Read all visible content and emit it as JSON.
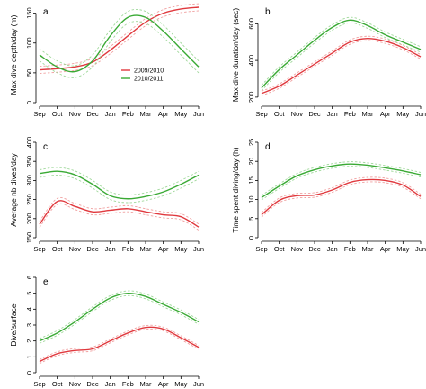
{
  "colors": {
    "season_2009": "#e0393e",
    "season_2010": "#3aaa35",
    "ci_2009": "#f0a0a0",
    "ci_2010": "#9fd89a"
  },
  "legend": {
    "season_2009": "2009/2010",
    "season_2010": "2010/2011"
  },
  "chart_data": [
    {
      "panel": "a",
      "type": "line",
      "ylabel": "Max dive depth/day (m)",
      "categories": [
        "Sep",
        "Oct",
        "Nov",
        "Dec",
        "Jan",
        "Feb",
        "Mar",
        "Apr",
        "May",
        "Jun"
      ],
      "x": [
        0,
        1,
        2,
        3,
        4,
        5,
        6,
        7,
        8,
        9
      ],
      "ylim": [
        0,
        160
      ],
      "yticks": [
        0,
        50,
        100,
        150
      ],
      "series": [
        {
          "name": "2009/2010",
          "values": [
            55,
            57,
            60,
            68,
            88,
            112,
            135,
            150,
            157,
            160
          ],
          "ci": 6
        },
        {
          "name": "2010/2011",
          "values": [
            80,
            60,
            52,
            70,
            112,
            143,
            143,
            120,
            90,
            60
          ],
          "ci": 10
        }
      ]
    },
    {
      "panel": "b",
      "type": "line",
      "ylabel": "Max dive duration/day (sec)",
      "categories": [
        "Sep",
        "Oct",
        "Nov",
        "Dec",
        "Jan",
        "Feb",
        "Mar",
        "Apr",
        "May",
        "Jun"
      ],
      "x": [
        0,
        1,
        2,
        3,
        4,
        5,
        6,
        7,
        8,
        9
      ],
      "ylim": [
        170,
        690
      ],
      "yticks": [
        200,
        400,
        600
      ],
      "series": [
        {
          "name": "2009/2010",
          "values": [
            220,
            260,
            320,
            380,
            440,
            500,
            520,
            505,
            470,
            420
          ],
          "ci": 12
        },
        {
          "name": "2010/2011",
          "values": [
            250,
            350,
            430,
            510,
            580,
            620,
            590,
            540,
            500,
            460
          ],
          "ci": 15
        }
      ]
    },
    {
      "panel": "c",
      "type": "line",
      "ylabel": "Average nb dives/day",
      "categories": [
        "Sep",
        "Oct",
        "Nov",
        "Dec",
        "Jan",
        "Feb",
        "Mar",
        "Apr",
        "May",
        "Jun"
      ],
      "x": [
        0,
        1,
        2,
        3,
        4,
        5,
        6,
        7,
        8,
        9
      ],
      "ylim": [
        150,
        400
      ],
      "yticks": [
        150,
        200,
        250,
        300,
        350,
        400
      ],
      "series": [
        {
          "name": "2009/2010",
          "values": [
            185,
            245,
            232,
            218,
            222,
            226,
            218,
            210,
            205,
            178
          ],
          "ci": 8
        },
        {
          "name": "2010/2011",
          "values": [
            318,
            324,
            315,
            290,
            260,
            252,
            258,
            270,
            290,
            314
          ],
          "ci": 10
        }
      ]
    },
    {
      "panel": "d",
      "type": "line",
      "ylabel": "Time spent diving/day (h)",
      "categories": [
        "Sep",
        "Oct",
        "Nov",
        "Dec",
        "Jan",
        "Feb",
        "Mar",
        "Apr",
        "May",
        "Jun"
      ],
      "x": [
        0,
        1,
        2,
        3,
        4,
        5,
        6,
        7,
        8,
        9
      ],
      "ylim": [
        0,
        25
      ],
      "yticks": [
        0,
        5,
        10,
        15,
        20,
        25
      ],
      "series": [
        {
          "name": "2009/2010",
          "values": [
            6,
            9.8,
            11,
            11.2,
            12.5,
            14.5,
            15.2,
            15,
            13.8,
            10.8
          ],
          "ci": 0.6
        },
        {
          "name": "2010/2011",
          "values": [
            10.5,
            13.5,
            16.2,
            17.8,
            18.8,
            19.3,
            19,
            18.3,
            17.5,
            16.5
          ],
          "ci": 0.6
        }
      ]
    },
    {
      "panel": "e",
      "type": "line",
      "ylabel": "Dive/surface",
      "categories": [
        "Sep",
        "Oct",
        "Nov",
        "Dec",
        "Jan",
        "Feb",
        "Mar",
        "Apr",
        "May",
        "Jun"
      ],
      "x": [
        0,
        1,
        2,
        3,
        4,
        5,
        6,
        7,
        8,
        9
      ],
      "ylim": [
        0,
        6
      ],
      "yticks": [
        0,
        1,
        2,
        3,
        4,
        5,
        6
      ],
      "series": [
        {
          "name": "2009/2010",
          "values": [
            0.7,
            1.2,
            1.4,
            1.5,
            2.0,
            2.5,
            2.85,
            2.75,
            2.2,
            1.6
          ],
          "ci": 0.12
        },
        {
          "name": "2010/2011",
          "values": [
            2.0,
            2.5,
            3.2,
            4.0,
            4.7,
            5.0,
            4.8,
            4.3,
            3.8,
            3.2
          ],
          "ci": 0.15
        }
      ]
    }
  ]
}
